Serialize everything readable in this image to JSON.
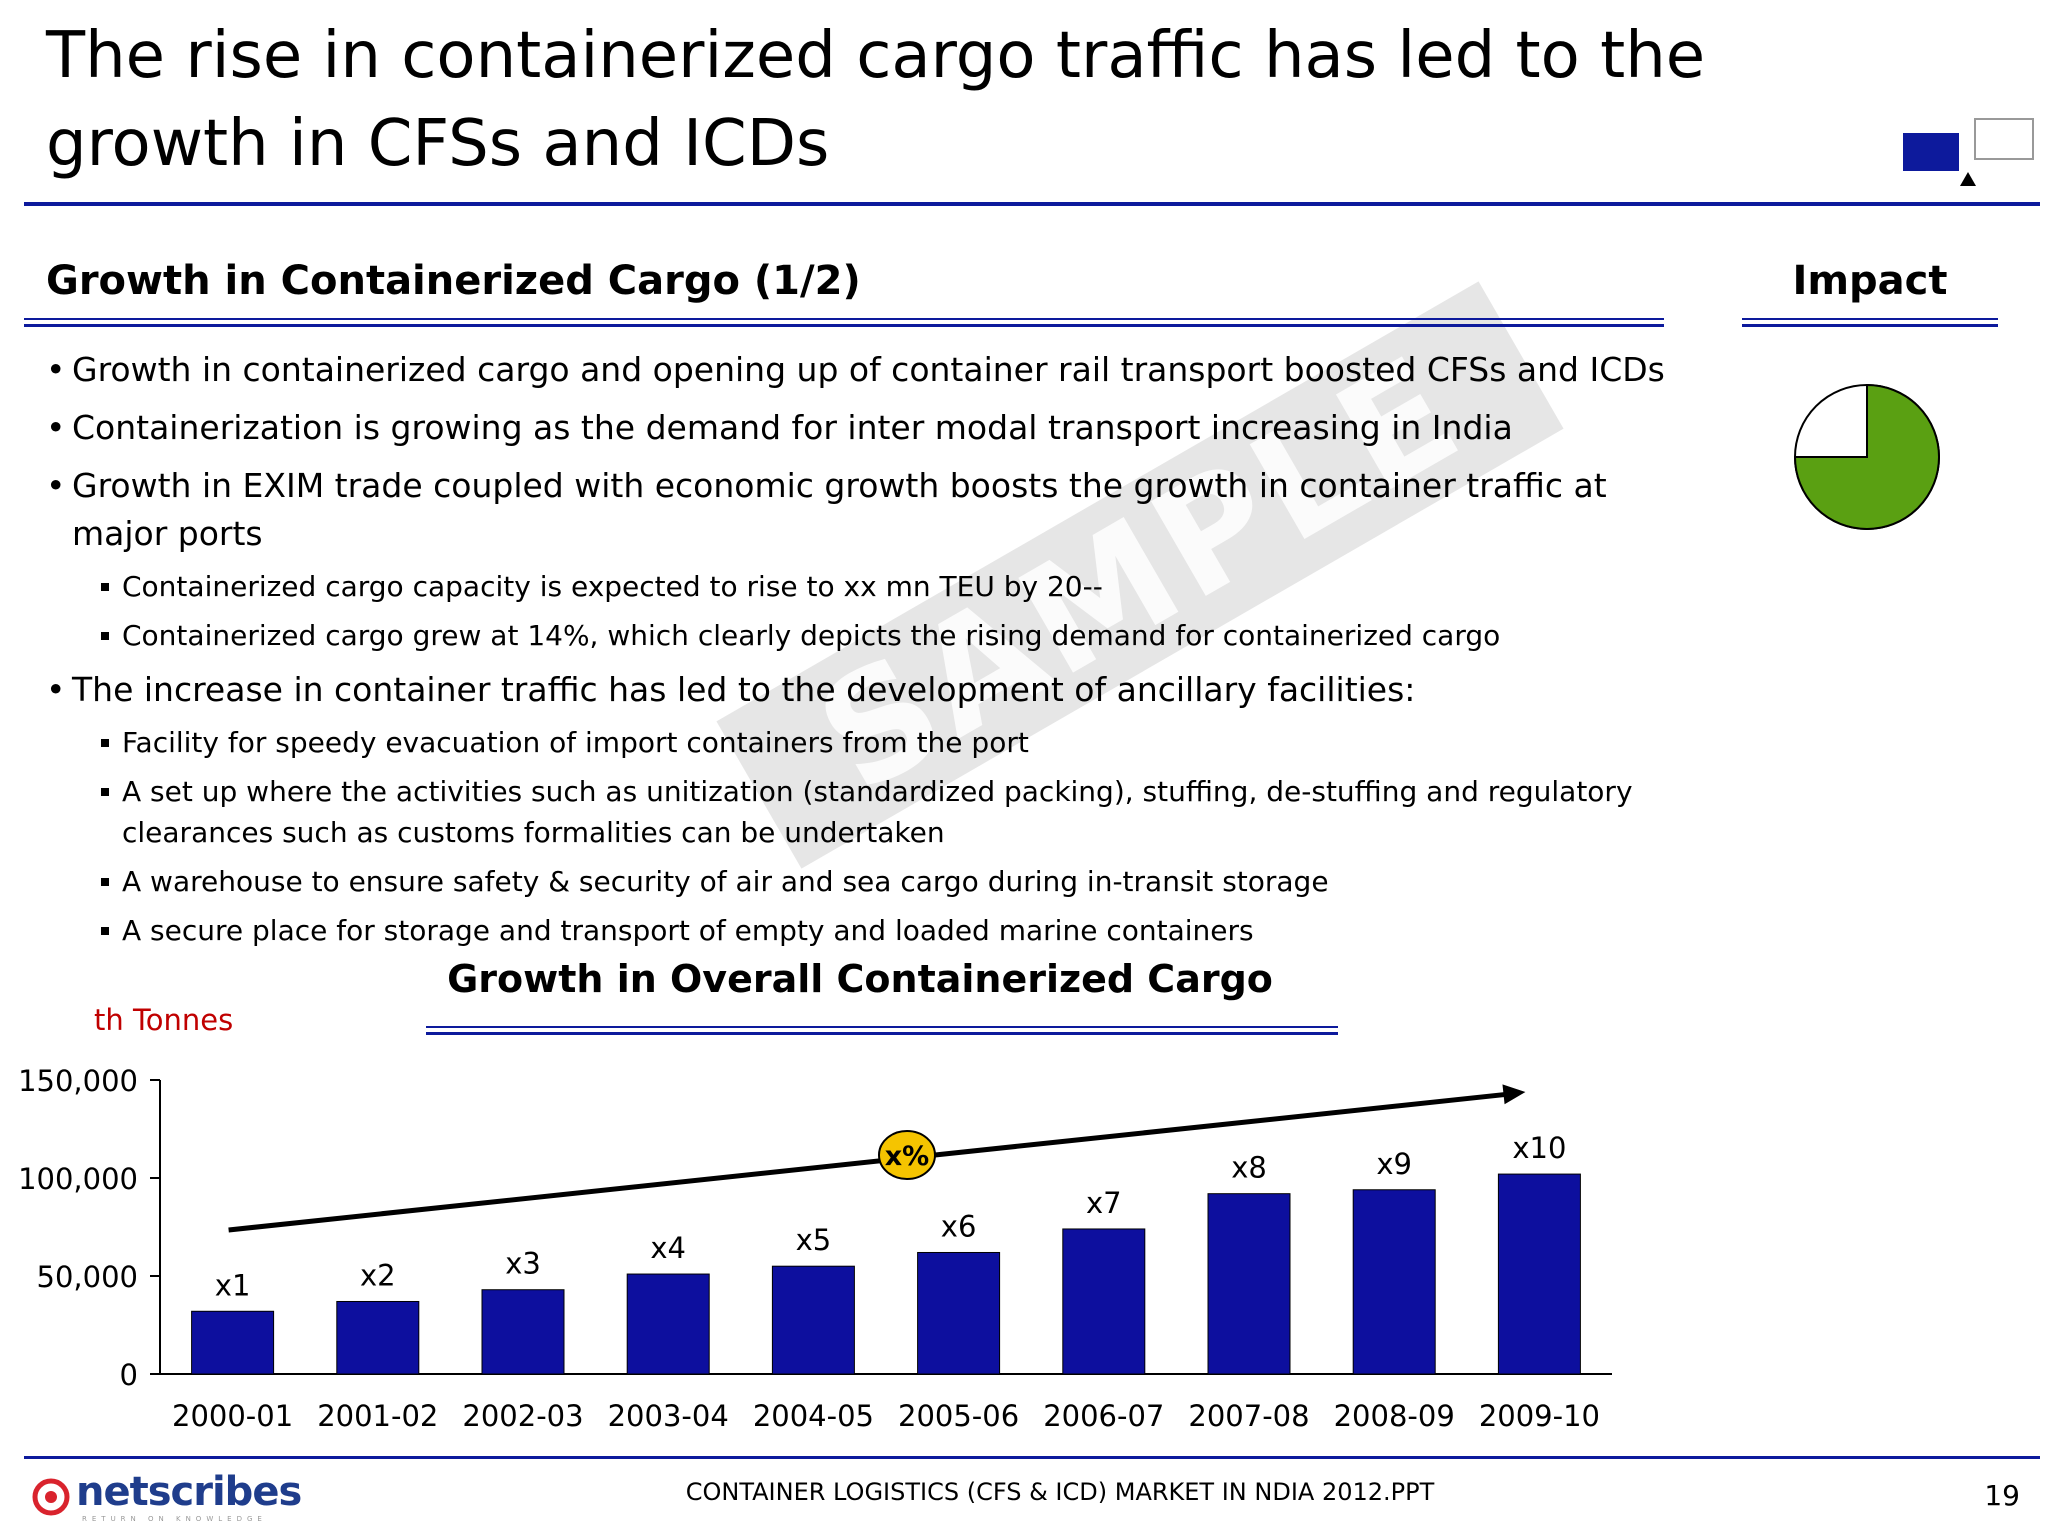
{
  "slide": {
    "title": "The rise in containerized cargo  traffic has led to the growth in CFSs and ICDs",
    "page_number": "19",
    "footer": "CONTAINER LOGISTICS (CFS & ICD) MARKET IN NDIA 2012.PPT",
    "watermark": "SAMPLE"
  },
  "brand": {
    "name": "netscribes",
    "tagline": "RETURN ON KNOWLEDGE"
  },
  "colors": {
    "accent": "#0d1a9c",
    "bar": "#0d0f9e",
    "pie_green": "#5aa012",
    "badge": "#f5c400",
    "unit": "#c00000"
  },
  "section": {
    "heading": "Growth in Containerized Cargo (1/2)",
    "impact_heading": "Impact",
    "impact_level": 0.75
  },
  "bullets": [
    {
      "level": 1,
      "text": "Growth in containerized cargo and opening up of container rail transport boosted CFSs and ICDs"
    },
    {
      "level": 1,
      "text": "Containerization is growing as the demand for inter modal transport increasing in India"
    },
    {
      "level": 1,
      "text": "Growth in EXIM trade coupled with economic growth boosts the growth in container traffic at major ports"
    },
    {
      "level": 2,
      "text": "Containerized cargo capacity is expected to rise to xx mn TEU by 20--"
    },
    {
      "level": 2,
      "text": "Containerized cargo grew at 14%, which clearly depicts the rising demand for containerized cargo"
    },
    {
      "level": 1,
      "text": "The increase in container traffic has led to the development of ancillary facilities:"
    },
    {
      "level": 2,
      "text": "Facility for speedy evacuation of import containers from the port"
    },
    {
      "level": 2,
      "text": "A set up where the activities such as unitization (standardized packing), stuffing, de-stuffing and regulatory clearances such as customs formalities can be undertaken"
    },
    {
      "level": 2,
      "text": "A warehouse to ensure safety & security of  air and sea cargo during in-transit storage"
    },
    {
      "level": 2,
      "text": "A secure place for storage and transport of empty and loaded marine containers"
    }
  ],
  "chart_data": {
    "type": "bar",
    "title": "Growth in Overall Containerized Cargo",
    "ylabel": "th Tonnes",
    "categories": [
      "2000-01",
      "2001-02",
      "2002-03",
      "2003-04",
      "2004-05",
      "2005-06",
      "2006-07",
      "2007-08",
      "2008-09",
      "2009-10"
    ],
    "values": [
      32000,
      37000,
      43000,
      51000,
      55000,
      62000,
      74000,
      92000,
      94000,
      102000
    ],
    "data_labels": [
      "x1",
      "x2",
      "x3",
      "x4",
      "x5",
      "x6",
      "x7",
      "x8",
      "x9",
      "x10"
    ],
    "ylim": [
      0,
      150000
    ],
    "yticks": [
      0,
      50000,
      100000,
      150000
    ],
    "ytick_labels": [
      "0",
      "50,000",
      "100,000",
      "150,000"
    ],
    "trend_badge": "x%",
    "grid": false,
    "legend": "none"
  }
}
